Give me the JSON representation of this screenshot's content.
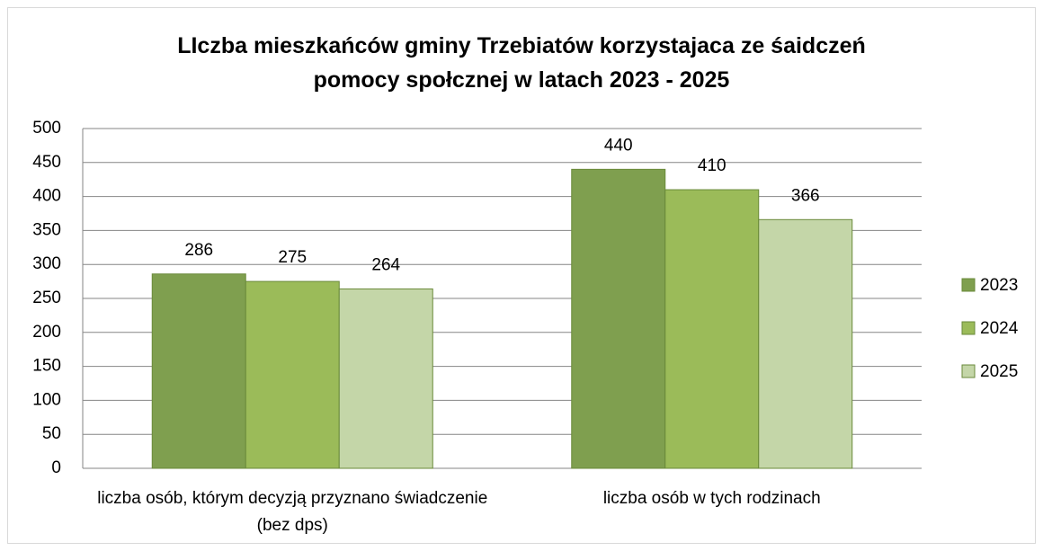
{
  "chart_data": {
    "type": "bar",
    "title": "LIczba mieszkańców gminy Trzebiatów korzystajaca ze śaidczeń pomocy społcznej w latach 2023 - 2025",
    "categories": [
      "liczba osób, którym decyzją przyznano świadczenie (bez dps)",
      "liczba osób w tych rodzinach"
    ],
    "series": [
      {
        "name": "2023",
        "color": "#7f9f4f",
        "values": [
          286,
          440
        ]
      },
      {
        "name": "2024",
        "color": "#9bbb59",
        "values": [
          275,
          410
        ]
      },
      {
        "name": "2025",
        "color": "#c4d6a8",
        "values": [
          264,
          366
        ]
      }
    ],
    "ylim": [
      0,
      500
    ],
    "yticks": [
      0,
      50,
      100,
      150,
      200,
      250,
      300,
      350,
      400,
      450,
      500
    ],
    "grid": true,
    "legend": "right"
  }
}
